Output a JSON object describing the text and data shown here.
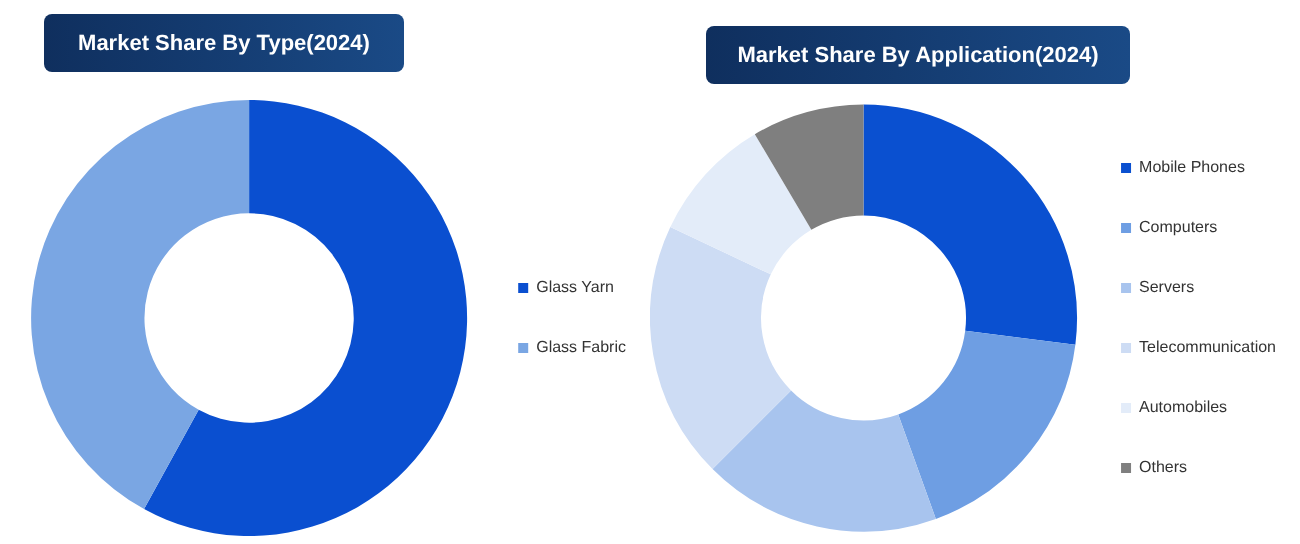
{
  "chart_data": [
    {
      "type": "donut",
      "title": "Market Share By Type(2024)",
      "categories": [
        "Glass Yarn",
        "Glass Fabric"
      ],
      "values": [
        58,
        42
      ],
      "colors": [
        "#0a4fd0",
        "#7aa6e3"
      ],
      "legend": "right"
    },
    {
      "type": "donut",
      "title": "Market Share By Application(2024)",
      "categories": [
        "Mobile Phones",
        "Computers",
        "Servers",
        "Telecommunication",
        "Automobiles",
        "Others"
      ],
      "values": [
        27,
        17.5,
        18,
        19.5,
        9.5,
        8.5
      ],
      "colors": [
        "#0a50d0",
        "#6e9ee3",
        "#a8c4ee",
        "#cddcf4",
        "#e3ecf9",
        "#7f7f7f"
      ],
      "legend": "right"
    }
  ]
}
